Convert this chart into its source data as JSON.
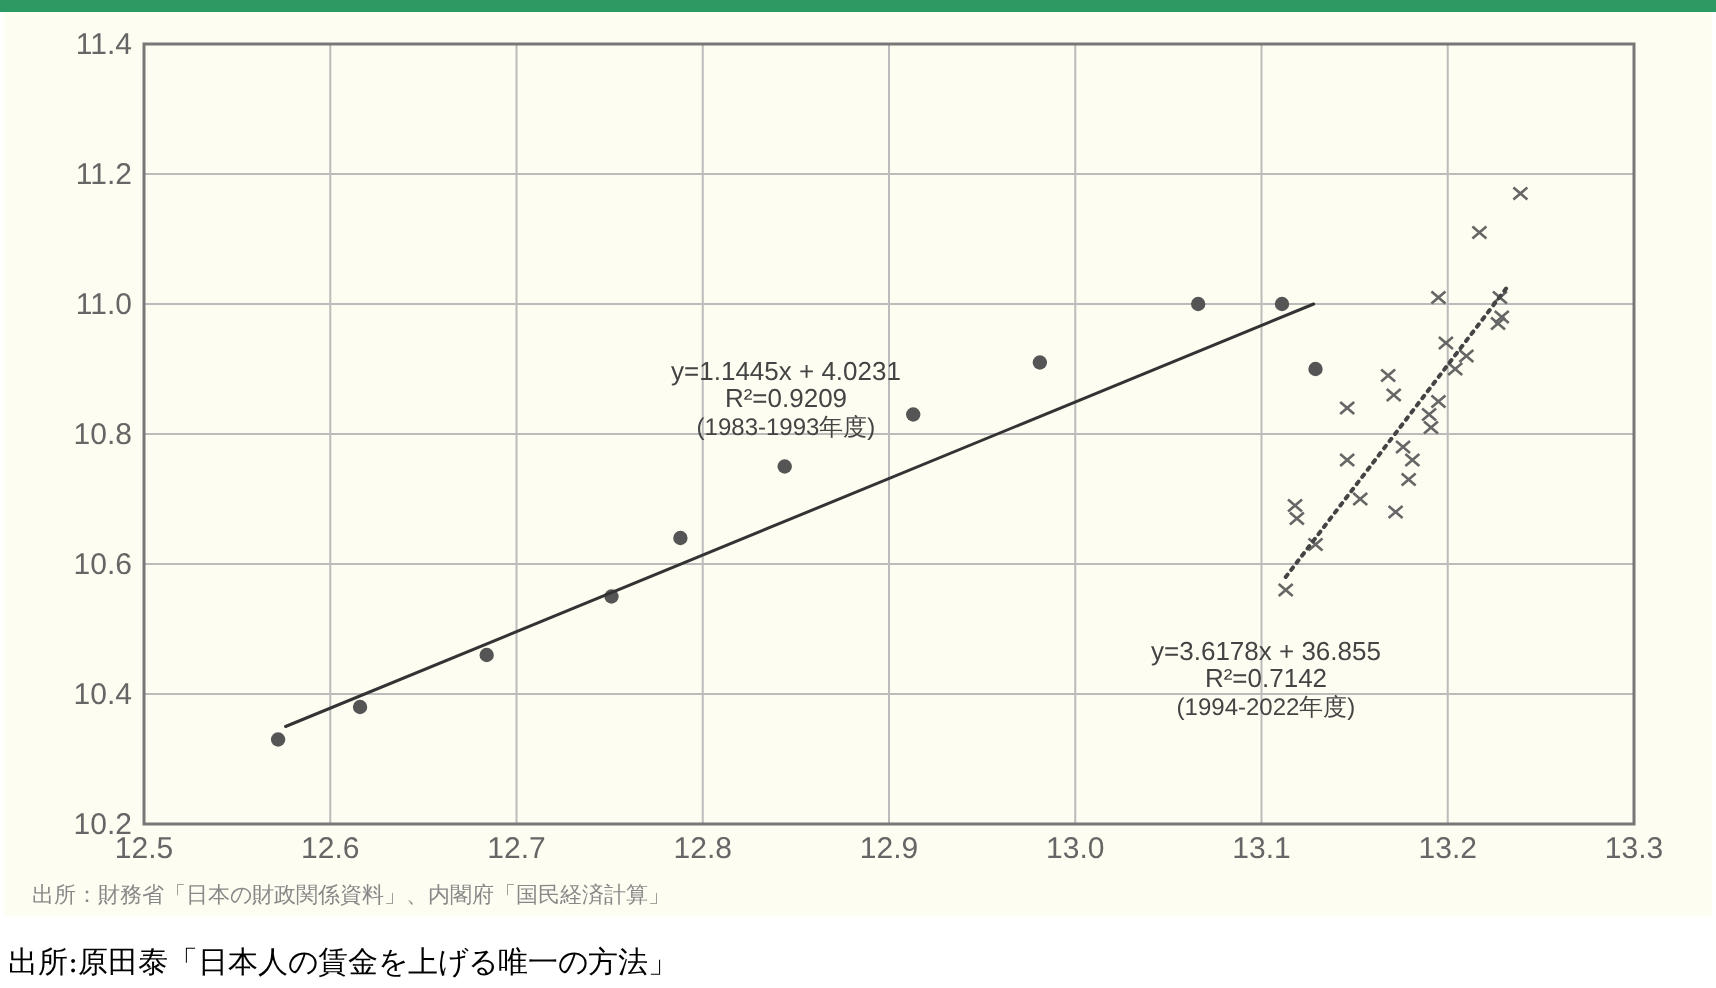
{
  "chart_data": {
    "type": "scatter",
    "xlim": [
      12.5,
      13.3
    ],
    "ylim": [
      10.2,
      11.4
    ],
    "xticks": [
      {
        "value": 12.5,
        "label": "12.5"
      },
      {
        "value": 12.6,
        "label": "12.6"
      },
      {
        "value": 12.7,
        "label": "12.7"
      },
      {
        "value": 12.8,
        "label": "12.8"
      },
      {
        "value": 12.9,
        "label": "12.9"
      },
      {
        "value": 13.0,
        "label": "13.0"
      },
      {
        "value": 13.1,
        "label": "13.1"
      },
      {
        "value": 13.2,
        "label": "13.2"
      },
      {
        "value": 13.3,
        "label": "13.3"
      }
    ],
    "yticks": [
      {
        "value": 10.2,
        "label": "10.2"
      },
      {
        "value": 10.4,
        "label": "10.4"
      },
      {
        "value": 10.6,
        "label": "10.6"
      },
      {
        "value": 10.8,
        "label": "10.8"
      },
      {
        "value": 11.0,
        "label": "11.0"
      },
      {
        "value": 11.2,
        "label": "11.2"
      },
      {
        "value": 11.4,
        "label": "11.4"
      }
    ],
    "grid": true,
    "series": [
      {
        "marker": "circle",
        "color": "#555555",
        "x": [
          12.572,
          12.616,
          12.684,
          12.751,
          12.788,
          12.844,
          12.913,
          12.981,
          13.066,
          13.111,
          13.129
        ],
        "values": [
          10.33,
          10.38,
          10.46,
          10.55,
          10.64,
          10.75,
          10.83,
          10.91,
          11.0,
          11.0,
          10.9
        ]
      },
      {
        "marker": "cross",
        "color": "#666666",
        "x": [
          13.239,
          13.217,
          13.195,
          13.228,
          13.229,
          13.227,
          13.199,
          13.21,
          13.204,
          13.168,
          13.171,
          13.146,
          13.195,
          13.19,
          13.191,
          13.176,
          13.181,
          13.146,
          13.179,
          13.153,
          13.172,
          13.118,
          13.119,
          13.129,
          13.113
        ],
        "values": [
          11.17,
          11.11,
          11.01,
          11.01,
          10.98,
          10.97,
          10.94,
          10.92,
          10.9,
          10.89,
          10.86,
          10.84,
          10.85,
          10.83,
          10.81,
          10.78,
          10.76,
          10.76,
          10.73,
          10.7,
          10.68,
          10.69,
          10.67,
          10.63,
          10.56
        ]
      },
      {
        "type": "line",
        "line_style": "solid",
        "marker": "none",
        "color": "#333333",
        "x": [
          12.576,
          13.128
        ],
        "values": [
          10.35,
          11.0
        ]
      },
      {
        "type": "line",
        "line_style": "dotted",
        "marker": "none",
        "color": "#444444",
        "x": [
          13.113,
          13.233
        ],
        "values": [
          10.58,
          11.03
        ]
      }
    ],
    "annotations": [
      "y=1.1445x + 4.0231\nR²=0.9209\n(1983-1993年度)",
      "y=3.6178x + 36.855\nR²=0.7142\n(1994-2022年度)",
      "出所：財務省「日本の財政関係資料」、内閣府「国民経済計算」",
      "出所:原田泰「日本人の賃金を上げる唯一の方法」"
    ]
  }
}
